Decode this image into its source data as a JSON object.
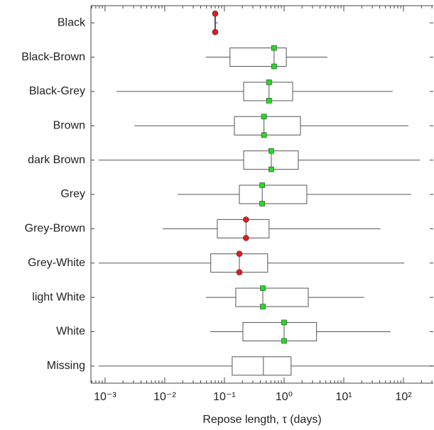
{
  "chart_data": {
    "type": "boxplot",
    "x_label": "Repose length, τ (days)",
    "categories": [
      "Black",
      "Black-Brown",
      "Black-Grey",
      "Brown",
      "dark Brown",
      "Grey",
      "Grey-Brown",
      "Grey-White",
      "light White",
      "White",
      "Missing"
    ],
    "boxes": [
      {
        "low": 0.068,
        "q1": 0.069,
        "median": 0.07,
        "q3": 0.071,
        "high": 0.078
      },
      {
        "low": 0.049,
        "q1": 0.124,
        "median": 0.68,
        "q3": 1.09,
        "high": 5.3
      },
      {
        "low": 0.00155,
        "q1": 0.21,
        "median": 0.56,
        "q3": 1.39,
        "high": 66
      },
      {
        "low": 0.0031,
        "q1": 0.147,
        "median": 0.46,
        "q3": 1.88,
        "high": 121
      },
      {
        "low": 0.00078,
        "q1": 0.21,
        "median": 0.61,
        "q3": 1.73,
        "high": 188
      },
      {
        "low": 0.0164,
        "q1": 0.178,
        "median": 0.43,
        "q3": 2.4,
        "high": 135
      },
      {
        "low": 0.0092,
        "q1": 0.076,
        "median": 0.23,
        "q3": 0.56,
        "high": 41
      },
      {
        "low": 0.00078,
        "q1": 0.059,
        "median": 0.178,
        "q3": 0.53,
        "high": 103
      },
      {
        "low": 0.049,
        "q1": 0.155,
        "median": 0.44,
        "q3": 2.54,
        "high": 22
      },
      {
        "low": 0.058,
        "q1": 0.204,
        "median": 1.0,
        "q3": 3.5,
        "high": 61
      },
      {
        "low": 0.00078,
        "q1": 0.135,
        "median": 0.45,
        "q3": 1.31,
        "high": 400
      }
    ],
    "markers": [
      "circle",
      "square",
      "square",
      "square",
      "square",
      "square",
      "circle",
      "circle",
      "square",
      "square",
      null
    ],
    "marker_colors": {
      "circle": "#e41a1c",
      "square": "#22dd22"
    },
    "box_color": "#555555",
    "xscale": "log",
    "xlim": [
      0.00058,
      316
    ],
    "xticks": [
      {
        "value": 0.001,
        "label": "10⁻³"
      },
      {
        "value": 0.01,
        "label": "10⁻²"
      },
      {
        "value": 0.1,
        "label": "10⁻¹"
      },
      {
        "value": 1,
        "label": "10⁰"
      },
      {
        "value": 10,
        "label": "10¹"
      },
      {
        "value": 100,
        "label": "10²"
      }
    ]
  }
}
